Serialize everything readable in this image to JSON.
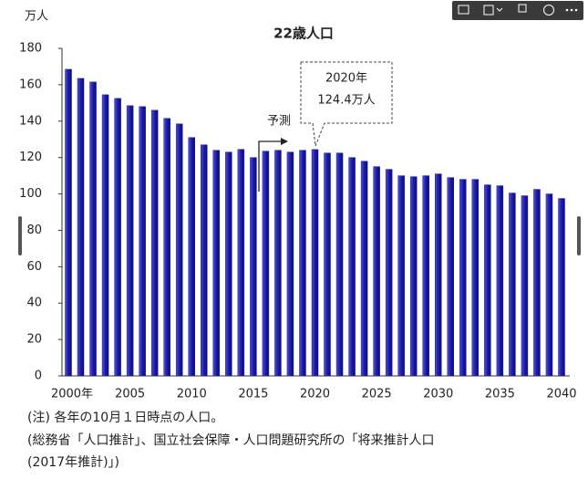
{
  "chart_data": {
    "type": "bar",
    "title": "22歳人口",
    "y_unit": "万人",
    "categories": [
      "2000年",
      null,
      null,
      null,
      null,
      "2005",
      null,
      null,
      null,
      null,
      "2010",
      null,
      null,
      null,
      null,
      "2015",
      null,
      null,
      null,
      null,
      "2020",
      null,
      null,
      null,
      null,
      "2025",
      null,
      null,
      null,
      null,
      "2030",
      null,
      null,
      null,
      null,
      "2035",
      null,
      null,
      null,
      null,
      "2040"
    ],
    "values": [
      168.5,
      163.5,
      161.5,
      154.5,
      152.5,
      148.5,
      148,
      146,
      141.5,
      138.5,
      131,
      127,
      124,
      123,
      124.5,
      120,
      123.5,
      124,
      123,
      124,
      124.4,
      122.5,
      122.5,
      120,
      118,
      115,
      113.5,
      110,
      109.5,
      110,
      111,
      109,
      108,
      108,
      105,
      104.5,
      100.5,
      99,
      102.5,
      100,
      97.5
    ],
    "color": "#1c1ca8",
    "ylim": [
      0,
      180
    ],
    "yticks": [
      0,
      20,
      40,
      60,
      80,
      100,
      120,
      140,
      160,
      180
    ],
    "grid": false,
    "forecast_label": "予測",
    "callout_year": "2020年",
    "callout_value": "124.4万人",
    "notes": [
      "(注) 各年の10月１日時点の人口。",
      "(総務省「人口推計」、国立社会保障・人口問題研究所の「将来推計人口",
      "(2017年推計)」)"
    ]
  }
}
